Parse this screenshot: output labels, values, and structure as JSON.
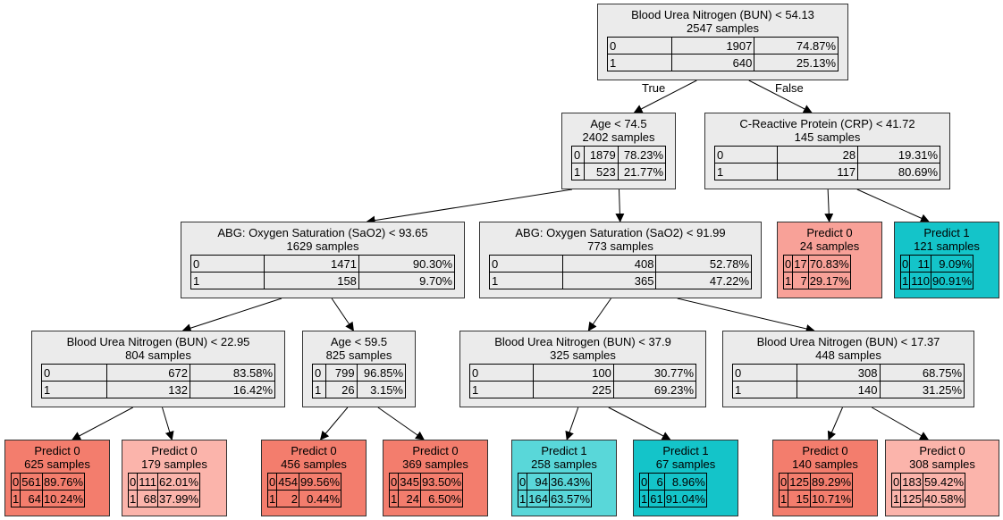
{
  "colors": {
    "internal_node": "#ebebeb",
    "predict0_strong": "#f37d6d",
    "predict0_mid": "#f8a198",
    "predict0_light": "#fbb4ab",
    "predict1_mid": "#59d7d9",
    "predict1_strong": "#14c4c9"
  },
  "edge_labels": {
    "true_label": "True",
    "false_label": "False"
  },
  "nodes": [
    {
      "title": "Blood Urea Nitrogen (BUN) < 54.13",
      "samples": "2547 samples",
      "rows": [
        [
          "0",
          "1907",
          "74.87%"
        ],
        [
          "1",
          "640",
          "25.13%"
        ]
      ]
    },
    {
      "title": "Age < 74.5",
      "samples": "2402 samples",
      "rows": [
        [
          "0",
          "1879",
          "78.23%"
        ],
        [
          "1",
          "523",
          "21.77%"
        ]
      ]
    },
    {
      "title": "C-Reactive Protein (CRP) < 41.72",
      "samples": "145 samples",
      "rows": [
        [
          "0",
          "28",
          "19.31%"
        ],
        [
          "1",
          "117",
          "80.69%"
        ]
      ]
    },
    {
      "title": "ABG: Oxygen Saturation (SaO2) < 93.65",
      "samples": "1629 samples",
      "rows": [
        [
          "0",
          "1471",
          "90.30%"
        ],
        [
          "1",
          "158",
          "9.70%"
        ]
      ]
    },
    {
      "title": "ABG: Oxygen Saturation (SaO2) < 91.99",
      "samples": "773 samples",
      "rows": [
        [
          "0",
          "408",
          "52.78%"
        ],
        [
          "1",
          "365",
          "47.22%"
        ]
      ]
    },
    {
      "title": "Predict 0",
      "samples": "24 samples",
      "rows": [
        [
          "0",
          "17",
          "70.83%"
        ],
        [
          "1",
          "7",
          "29.17%"
        ]
      ]
    },
    {
      "title": "Predict 1",
      "samples": "121 samples",
      "rows": [
        [
          "0",
          "11",
          "9.09%"
        ],
        [
          "1",
          "110",
          "90.91%"
        ]
      ]
    },
    {
      "title": "Blood Urea Nitrogen (BUN) < 22.95",
      "samples": "804 samples",
      "rows": [
        [
          "0",
          "672",
          "83.58%"
        ],
        [
          "1",
          "132",
          "16.42%"
        ]
      ]
    },
    {
      "title": "Age < 59.5",
      "samples": "825 samples",
      "rows": [
        [
          "0",
          "799",
          "96.85%"
        ],
        [
          "1",
          "26",
          "3.15%"
        ]
      ]
    },
    {
      "title": "Blood Urea Nitrogen (BUN) < 37.9",
      "samples": "325 samples",
      "rows": [
        [
          "0",
          "100",
          "30.77%"
        ],
        [
          "1",
          "225",
          "69.23%"
        ]
      ]
    },
    {
      "title": "Blood Urea Nitrogen (BUN) < 17.37",
      "samples": "448 samples",
      "rows": [
        [
          "0",
          "308",
          "68.75%"
        ],
        [
          "1",
          "140",
          "31.25%"
        ]
      ]
    },
    {
      "title": "Predict 0",
      "samples": "625 samples",
      "rows": [
        [
          "0",
          "561",
          "89.76%"
        ],
        [
          "1",
          "64",
          "10.24%"
        ]
      ]
    },
    {
      "title": "Predict 0",
      "samples": "179 samples",
      "rows": [
        [
          "0",
          "111",
          "62.01%"
        ],
        [
          "1",
          "68",
          "37.99%"
        ]
      ]
    },
    {
      "title": "Predict 0",
      "samples": "456 samples",
      "rows": [
        [
          "0",
          "454",
          "99.56%"
        ],
        [
          "1",
          "2",
          "0.44%"
        ]
      ]
    },
    {
      "title": "Predict 0",
      "samples": "369 samples",
      "rows": [
        [
          "0",
          "345",
          "93.50%"
        ],
        [
          "1",
          "24",
          "6.50%"
        ]
      ]
    },
    {
      "title": "Predict 1",
      "samples": "258 samples",
      "rows": [
        [
          "0",
          "94",
          "36.43%"
        ],
        [
          "1",
          "164",
          "63.57%"
        ]
      ]
    },
    {
      "title": "Predict 1",
      "samples": "67 samples",
      "rows": [
        [
          "0",
          "6",
          "8.96%"
        ],
        [
          "1",
          "61",
          "91.04%"
        ]
      ]
    },
    {
      "title": "Predict 0",
      "samples": "140 samples",
      "rows": [
        [
          "0",
          "125",
          "89.29%"
        ],
        [
          "1",
          "15",
          "10.71%"
        ]
      ]
    },
    {
      "title": "Predict 0",
      "samples": "308 samples",
      "rows": [
        [
          "0",
          "183",
          "59.42%"
        ],
        [
          "1",
          "125",
          "40.58%"
        ]
      ]
    }
  ]
}
